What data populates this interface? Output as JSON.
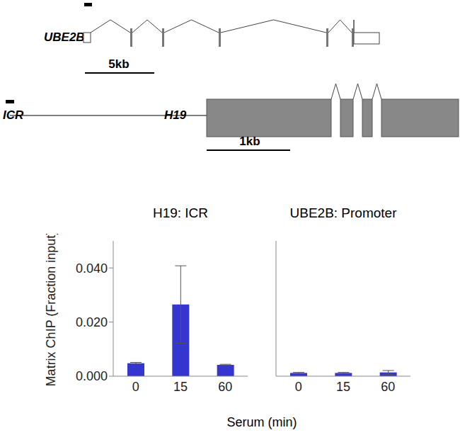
{
  "diagram": {
    "ube2b": {
      "label": "UBE2B",
      "scale_bar": "5kb"
    },
    "h19": {
      "region_label": "ICR",
      "gene_label": "H19",
      "scale_bar": "1kb"
    }
  },
  "xlabel": "Serum (min)",
  "chart_data": [
    {
      "type": "bar",
      "title": "H19: ICR",
      "ylabel": "Matrix ChIP (Fraction input)",
      "categories": [
        "0",
        "15",
        "60"
      ],
      "values": [
        0.0048,
        0.0265,
        0.0042
      ],
      "errors": [
        0.0003,
        0.0143,
        0.0002
      ],
      "color": "#3535d0",
      "ylim": [
        0,
        0.05
      ],
      "yticks": [
        {
          "value": 0,
          "label": "0.000"
        },
        {
          "value": 0.02,
          "label": "0.020"
        },
        {
          "value": 0.04,
          "label": "0.040"
        }
      ]
    },
    {
      "type": "bar",
      "title": "UBE2B: Promoter",
      "categories": [
        "0",
        "15",
        "60"
      ],
      "values": [
        0.0012,
        0.0012,
        0.0014
      ],
      "errors": [
        0.0002,
        0.0002,
        0.0007
      ],
      "color": "#3535d0",
      "ylim": [
        0,
        0.05
      ],
      "yticks": [
        {
          "value": 0,
          "label": "0.000"
        },
        {
          "value": 0.02,
          "label": "0.020"
        },
        {
          "value": 0.04,
          "label": "0.040"
        }
      ],
      "tick_labels": false
    }
  ]
}
